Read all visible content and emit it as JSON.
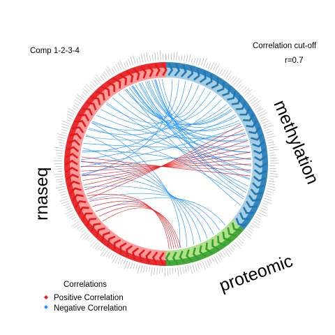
{
  "chart_data": {
    "type": "circos",
    "title": "Comp 1-2-3-4",
    "cutoff": {
      "label": "Correlation cut-off",
      "value_text": "r=0.7",
      "value": 0.7
    },
    "blocks": [
      {
        "name": "methylation",
        "start_deg": 0,
        "end_deg": 130,
        "color_dark": "#1f78b4",
        "color_light": "#a6cee3"
      },
      {
        "name": "proteomic",
        "start_deg": 130,
        "end_deg": 180,
        "color_dark": "#33a02c",
        "color_light": "#b2df8a"
      },
      {
        "name": "rnaseq",
        "start_deg": 180,
        "end_deg": 360,
        "color_dark": "#e31a1c",
        "color_light": "#fb9a99"
      }
    ],
    "legend": {
      "title": "Correlations",
      "entries": [
        {
          "label": "Positive Correlation",
          "color": "#e31a1c"
        },
        {
          "label": "Negative Correlation",
          "color": "#1e90ff"
        }
      ]
    },
    "colors": {
      "positive": "#e31a1c",
      "negative": "#1e90ff"
    }
  }
}
